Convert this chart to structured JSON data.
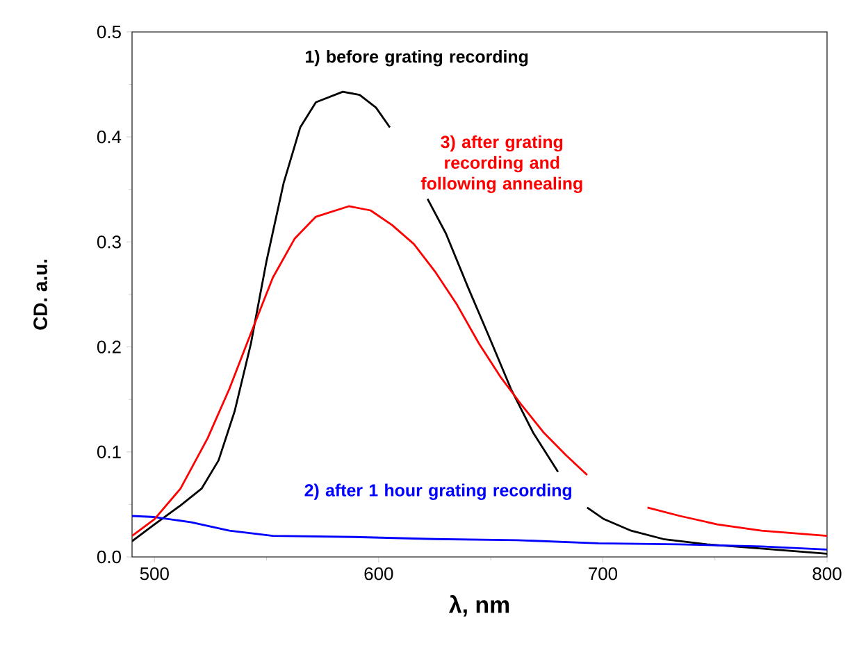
{
  "chart_data": {
    "type": "line",
    "xlabel": "λ, nm",
    "ylabel": "CD. a.u.",
    "xlim": [
      490,
      800
    ],
    "xticks": [
      500,
      600,
      700,
      800
    ],
    "ylim": [
      0,
      0.5
    ],
    "yticks": [
      {
        "value": 0,
        "label": "0.0"
      },
      0.1,
      0.2,
      0.3,
      0.4,
      0.5
    ],
    "grid": false,
    "legend": false,
    "line_style": "solid",
    "series": [
      {
        "name": "1) before grating recording",
        "color": "#000000",
        "x": [
          490,
          500,
          511.6,
          521,
          528.6,
          535.8,
          543,
          550,
          557.6,
          565,
          572,
          584,
          591.5,
          598.8,
          605,
          613,
          621.8,
          630,
          640,
          649.6,
          659,
          669,
          680,
          686,
          693,
          700.5,
          712.6,
          727,
          746.5,
          770.7,
          800
        ],
        "values": [
          0.015,
          0.031,
          0.049,
          0.065,
          0.092,
          0.139,
          0.203,
          0.282,
          0.356,
          0.409,
          0.433,
          0.443,
          0.44,
          0.428,
          0.409,
          null,
          0.341,
          0.308,
          0.256,
          0.208,
          0.16,
          0.118,
          0.081,
          null,
          0.047,
          0.036,
          0.025,
          0.017,
          0.012,
          0.008,
          0.003
        ]
      },
      {
        "name": "2) after 1 hour grating recording",
        "color": "#0000ff",
        "x": [
          490,
          500,
          516.5,
          533.4,
          552.8,
          589,
          625,
          661.7,
          698,
          734,
          770.7,
          800
        ],
        "values": [
          0.039,
          0.038,
          0.033,
          0.025,
          0.02,
          0.019,
          0.017,
          0.016,
          0.013,
          0.012,
          0.01,
          0.007
        ]
      },
      {
        "name": "3) after grating recording and following annealing",
        "color": "#ff0000",
        "x": [
          490,
          500,
          511.6,
          523.7,
          533.4,
          543,
          552.8,
          562.5,
          572,
          586.7,
          596.4,
          606,
          615.7,
          625.4,
          635,
          644.8,
          654.5,
          664,
          673.8,
          683.5,
          693,
          706,
          719.9,
          734.4,
          751,
          770.7,
          800
        ],
        "values": [
          0.02,
          0.036,
          0.065,
          0.113,
          0.16,
          0.213,
          0.266,
          0.303,
          0.324,
          0.334,
          0.33,
          0.316,
          0.298,
          0.271,
          0.24,
          0.203,
          0.171,
          0.144,
          0.118,
          0.097,
          0.078,
          null,
          0.047,
          0.039,
          0.031,
          0.025,
          0.02
        ]
      }
    ]
  }
}
